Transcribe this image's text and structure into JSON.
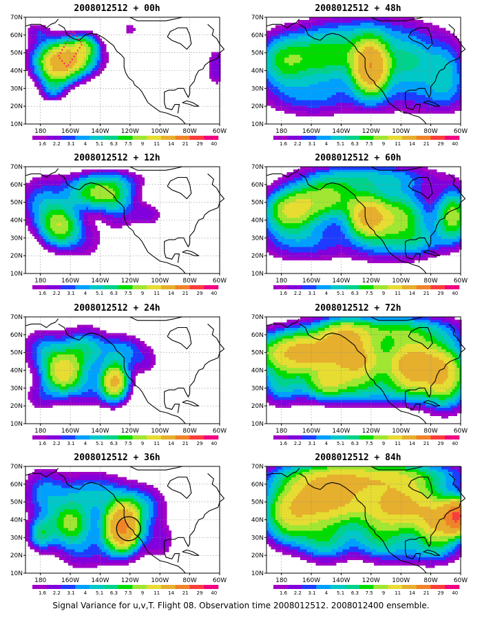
{
  "chart_data": [
    {
      "type": "heatmap",
      "title": "2008012512 + 00h",
      "lead_hours": 0,
      "x_ticks": [
        "180",
        "160W",
        "140W",
        "120W",
        "100W",
        "80W",
        "60W"
      ],
      "y_ticks": [
        "10N",
        "20N",
        "30N",
        "40N",
        "50N",
        "60N",
        "70N"
      ],
      "xlim": [
        -190,
        -60
      ],
      "ylim": [
        10,
        70
      ],
      "blobs": [
        {
          "lon": -163,
          "lat": 47,
          "a": 13,
          "b": 7,
          "peak": 16
        },
        {
          "lon": -170,
          "lat": 38,
          "a": 8,
          "b": 6,
          "peak": 6
        },
        {
          "lon": -150,
          "lat": 55,
          "a": 6,
          "b": 4,
          "peak": 5
        },
        {
          "lon": -172,
          "lat": 28,
          "a": 6,
          "b": 4,
          "peak": 3
        },
        {
          "lon": -182,
          "lat": 62,
          "a": 6,
          "b": 4,
          "peak": 2.5
        },
        {
          "lon": -120,
          "lat": 63,
          "a": 4,
          "b": 3,
          "peak": 2.2
        },
        {
          "lon": -62,
          "lat": 42,
          "a": 5,
          "b": 8,
          "peak": 3
        }
      ],
      "box": [
        [
          -168,
          48
        ],
        [
          -158,
          62
        ],
        [
          -152,
          55
        ],
        [
          -162,
          42
        ]
      ]
    },
    {
      "type": "heatmap",
      "title": "2008012512 + 12h",
      "lead_hours": 12,
      "x_ticks": [
        "180",
        "160W",
        "140W",
        "120W",
        "100W",
        "80W",
        "60W"
      ],
      "y_ticks": [
        "10N",
        "20N",
        "30N",
        "40N",
        "50N",
        "60N",
        "70N"
      ],
      "xlim": [
        -190,
        -60
      ],
      "ylim": [
        10,
        70
      ],
      "blobs": [
        {
          "lon": -167,
          "lat": 37,
          "a": 9,
          "b": 8,
          "peak": 10
        },
        {
          "lon": -142,
          "lat": 55,
          "a": 14,
          "b": 6,
          "peak": 9
        },
        {
          "lon": -180,
          "lat": 50,
          "a": 10,
          "b": 10,
          "peak": 4
        },
        {
          "lon": -128,
          "lat": 48,
          "a": 8,
          "b": 10,
          "peak": 3
        },
        {
          "lon": -108,
          "lat": 43,
          "a": 8,
          "b": 5,
          "peak": 2.5
        },
        {
          "lon": -150,
          "lat": 28,
          "a": 10,
          "b": 8,
          "peak": 2.2
        },
        {
          "lon": -135,
          "lat": 63,
          "a": 20,
          "b": 4,
          "peak": 2.5
        }
      ]
    },
    {
      "type": "heatmap",
      "title": "2008012512 + 24h",
      "lead_hours": 24,
      "x_ticks": [
        "180",
        "160W",
        "140W",
        "120W",
        "100W",
        "80W",
        "60W"
      ],
      "y_ticks": [
        "10N",
        "20N",
        "30N",
        "40N",
        "50N",
        "60N",
        "70N"
      ],
      "xlim": [
        -190,
        -60
      ],
      "ylim": [
        10,
        70
      ],
      "blobs": [
        {
          "lon": -165,
          "lat": 39,
          "a": 9,
          "b": 8,
          "peak": 12
        },
        {
          "lon": -130,
          "lat": 34,
          "a": 6,
          "b": 7,
          "peak": 14
        },
        {
          "lon": -150,
          "lat": 52,
          "a": 10,
          "b": 8,
          "peak": 6
        },
        {
          "lon": -178,
          "lat": 52,
          "a": 10,
          "b": 8,
          "peak": 4
        },
        {
          "lon": -125,
          "lat": 52,
          "a": 10,
          "b": 6,
          "peak": 4
        },
        {
          "lon": -145,
          "lat": 30,
          "a": 12,
          "b": 8,
          "peak": 3
        },
        {
          "lon": -180,
          "lat": 25,
          "a": 8,
          "b": 6,
          "peak": 2.5
        },
        {
          "lon": -110,
          "lat": 45,
          "a": 8,
          "b": 6,
          "peak": 2.2
        }
      ]
    },
    {
      "type": "heatmap",
      "title": "2008012512 + 36h",
      "lead_hours": 36,
      "x_ticks": [
        "180",
        "160W",
        "140W",
        "120W",
        "100W",
        "80W",
        "60W"
      ],
      "y_ticks": [
        "10N",
        "20N",
        "30N",
        "40N",
        "50N",
        "60N",
        "70N"
      ],
      "xlim": [
        -190,
        -60
      ],
      "ylim": [
        10,
        70
      ],
      "blobs": [
        {
          "lon": -125,
          "lat": 36,
          "a": 8,
          "b": 9,
          "peak": 22
        },
        {
          "lon": -160,
          "lat": 38,
          "a": 10,
          "b": 8,
          "peak": 9
        },
        {
          "lon": -180,
          "lat": 32,
          "a": 6,
          "b": 6,
          "peak": 6
        },
        {
          "lon": -145,
          "lat": 55,
          "a": 16,
          "b": 8,
          "peak": 5
        },
        {
          "lon": -178,
          "lat": 55,
          "a": 10,
          "b": 10,
          "peak": 4
        },
        {
          "lon": -110,
          "lat": 48,
          "a": 10,
          "b": 8,
          "peak": 4
        },
        {
          "lon": -150,
          "lat": 22,
          "a": 14,
          "b": 8,
          "peak": 3
        },
        {
          "lon": -100,
          "lat": 28,
          "a": 8,
          "b": 8,
          "peak": 2.5
        }
      ],
      "circle": {
        "lon": -121,
        "lat": 35,
        "r": 8
      }
    },
    {
      "type": "heatmap",
      "title": "2008012512 + 48h",
      "lead_hours": 48,
      "x_ticks": [
        "180",
        "160W",
        "140W",
        "120W",
        "100W",
        "80W",
        "60W"
      ],
      "y_ticks": [
        "10N",
        "20N",
        "30N",
        "40N",
        "50N",
        "60N",
        "70N"
      ],
      "xlim": [
        -190,
        -60
      ],
      "ylim": [
        10,
        70
      ],
      "blobs": [
        {
          "lon": -120,
          "lat": 42,
          "a": 8,
          "b": 10,
          "peak": 18
        },
        {
          "lon": -150,
          "lat": 48,
          "a": 20,
          "b": 10,
          "peak": 8
        },
        {
          "lon": -180,
          "lat": 45,
          "a": 12,
          "b": 10,
          "peak": 6
        },
        {
          "lon": -95,
          "lat": 45,
          "a": 12,
          "b": 10,
          "peak": 6
        },
        {
          "lon": -70,
          "lat": 40,
          "a": 10,
          "b": 12,
          "peak": 5
        },
        {
          "lon": -160,
          "lat": 25,
          "a": 22,
          "b": 8,
          "peak": 3.5
        },
        {
          "lon": -120,
          "lat": 62,
          "a": 30,
          "b": 8,
          "peak": 3
        },
        {
          "lon": -90,
          "lat": 25,
          "a": 30,
          "b": 8,
          "peak": 2.5
        }
      ]
    },
    {
      "type": "heatmap",
      "title": "2008012512 + 60h",
      "lead_hours": 60,
      "x_ticks": [
        "180",
        "160W",
        "140W",
        "120W",
        "100W",
        "80W",
        "60W"
      ],
      "y_ticks": [
        "10N",
        "20N",
        "30N",
        "40N",
        "50N",
        "60N",
        "70N"
      ],
      "xlim": [
        -190,
        -60
      ],
      "ylim": [
        10,
        70
      ],
      "blobs": [
        {
          "lon": -122,
          "lat": 42,
          "a": 9,
          "b": 8,
          "peak": 14
        },
        {
          "lon": -175,
          "lat": 45,
          "a": 12,
          "b": 8,
          "peak": 10
        },
        {
          "lon": -150,
          "lat": 52,
          "a": 16,
          "b": 8,
          "peak": 9
        },
        {
          "lon": -100,
          "lat": 42,
          "a": 12,
          "b": 10,
          "peak": 9
        },
        {
          "lon": -65,
          "lat": 42,
          "a": 8,
          "b": 10,
          "peak": 10
        },
        {
          "lon": -120,
          "lat": 64,
          "a": 30,
          "b": 6,
          "peak": 5
        },
        {
          "lon": -165,
          "lat": 28,
          "a": 22,
          "b": 8,
          "peak": 4
        },
        {
          "lon": -110,
          "lat": 26,
          "a": 18,
          "b": 8,
          "peak": 3
        },
        {
          "lon": -85,
          "lat": 28,
          "a": 10,
          "b": 6,
          "peak": 3
        }
      ]
    },
    {
      "type": "heatmap",
      "title": "2008012512 + 72h",
      "lead_hours": 72,
      "x_ticks": [
        "180",
        "160W",
        "140W",
        "120W",
        "100W",
        "80W",
        "60W"
      ],
      "y_ticks": [
        "10N",
        "20N",
        "30N",
        "40N",
        "50N",
        "60N",
        "70N"
      ],
      "xlim": [
        -190,
        -60
      ],
      "ylim": [
        10,
        70
      ],
      "blobs": [
        {
          "lon": -165,
          "lat": 50,
          "a": 22,
          "b": 8,
          "peak": 16
        },
        {
          "lon": -92,
          "lat": 43,
          "a": 12,
          "b": 10,
          "peak": 17
        },
        {
          "lon": -128,
          "lat": 45,
          "a": 12,
          "b": 10,
          "peak": 12
        },
        {
          "lon": -70,
          "lat": 38,
          "a": 10,
          "b": 12,
          "peak": 12
        },
        {
          "lon": -110,
          "lat": 63,
          "a": 30,
          "b": 6,
          "peak": 7
        },
        {
          "lon": -150,
          "lat": 33,
          "a": 10,
          "b": 6,
          "peak": 8
        },
        {
          "lon": -180,
          "lat": 32,
          "a": 10,
          "b": 8,
          "peak": 5
        },
        {
          "lon": -120,
          "lat": 28,
          "a": 30,
          "b": 6,
          "peak": 3.5
        },
        {
          "lon": -140,
          "lat": 60,
          "a": 10,
          "b": 6,
          "peak": 6
        }
      ]
    },
    {
      "type": "heatmap",
      "title": "2008012512 + 84h",
      "lead_hours": 84,
      "x_ticks": [
        "180",
        "160W",
        "140W",
        "120W",
        "100W",
        "80W",
        "60W"
      ],
      "y_ticks": [
        "10N",
        "20N",
        "30N",
        "40N",
        "50N",
        "60N",
        "70N"
      ],
      "xlim": [
        -190,
        -60
      ],
      "ylim": [
        10,
        70
      ],
      "blobs": [
        {
          "lon": -150,
          "lat": 52,
          "a": 22,
          "b": 10,
          "peak": 16
        },
        {
          "lon": -100,
          "lat": 48,
          "a": 16,
          "b": 10,
          "peak": 14
        },
        {
          "lon": -62,
          "lat": 42,
          "a": 6,
          "b": 6,
          "peak": 26
        },
        {
          "lon": -75,
          "lat": 38,
          "a": 10,
          "b": 10,
          "peak": 12
        },
        {
          "lon": -120,
          "lat": 65,
          "a": 40,
          "b": 6,
          "peak": 9
        },
        {
          "lon": -175,
          "lat": 40,
          "a": 12,
          "b": 10,
          "peak": 8
        },
        {
          "lon": -150,
          "lat": 28,
          "a": 12,
          "b": 8,
          "peak": 6
        },
        {
          "lon": -115,
          "lat": 30,
          "a": 12,
          "b": 8,
          "peak": 5
        },
        {
          "lon": -90,
          "lat": 22,
          "a": 20,
          "b": 6,
          "peak": 3
        }
      ]
    }
  ],
  "legend": {
    "labels": [
      "1.6",
      "2.2",
      "3.1",
      "4",
      "5.1",
      "6.3",
      "7.5",
      "9",
      "11",
      "14",
      "21",
      "29",
      "40"
    ],
    "thresholds": [
      1.6,
      2.2,
      3.1,
      4,
      5.1,
      6.3,
      7.5,
      9,
      11,
      14,
      21,
      29,
      40
    ],
    "colors": [
      "#a000c8",
      "#8200dc",
      "#1e3cff",
      "#00a0ff",
      "#00c8c8",
      "#00d28c",
      "#00dc00",
      "#a0e632",
      "#e6dc32",
      "#e6af2d",
      "#f08228",
      "#fa3c3c",
      "#f00082"
    ]
  },
  "caption": "Signal Variance for u,v,T. Flight 08. Observation time 2008012512. 2008012400 ensemble."
}
